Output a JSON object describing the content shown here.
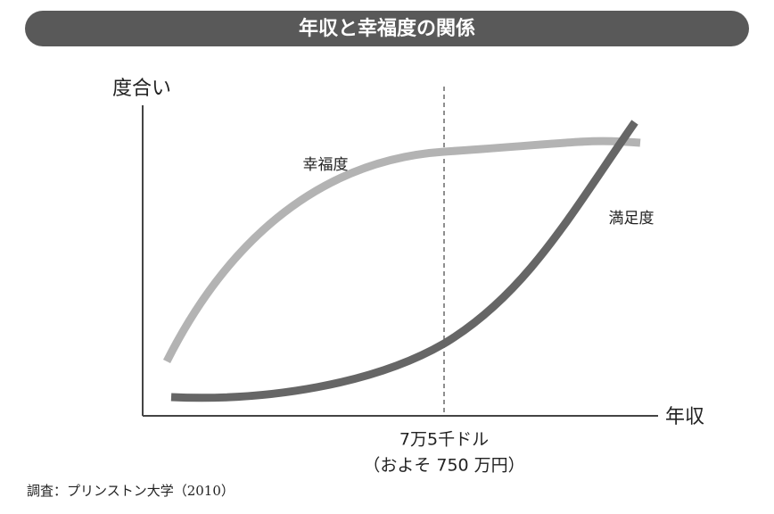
{
  "header": {
    "title": "年収と幸福度の関係"
  },
  "axes": {
    "y_label": "度合い",
    "x_label": "年収"
  },
  "curves": [
    {
      "label": "幸福度"
    },
    {
      "label": "満足度"
    }
  ],
  "marker": {
    "line1": "7万5千ドル",
    "line2": "（およそ 750 万円）"
  },
  "source": "調査：プリンストン大学（2010）"
}
